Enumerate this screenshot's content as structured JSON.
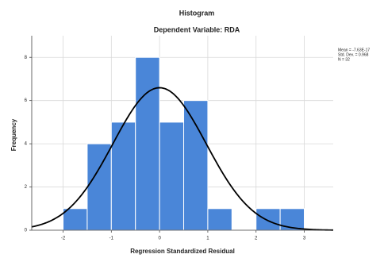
{
  "chart_data": {
    "type": "histogram",
    "title": "Histogram",
    "subtitle": "Dependent Variable: RDA",
    "x_label": "Regression Standardized Residual",
    "y_label": "Frequency",
    "bins": [
      -2,
      -1.5,
      -1,
      -0.5,
      0,
      0.5,
      1,
      1.5,
      2,
      2.5,
      3
    ],
    "values": [
      1,
      4,
      5,
      8,
      5,
      6,
      1,
      0,
      1,
      1
    ],
    "color": "#4a86d8",
    "curve_color": "#000000",
    "xlim": [
      -2.65,
      3.6
    ],
    "ylim": [
      0,
      9
    ],
    "xticks": [
      -2,
      -1,
      0,
      1,
      2,
      3
    ],
    "yticks": [
      0,
      2,
      4,
      6,
      8
    ],
    "grid": true,
    "stats": [
      {
        "label": "Mean = -7.63E-17",
        "value": -7.63e-17
      },
      {
        "label": "Std. Dev. = 0.968",
        "value": 0.968
      },
      {
        "label": "N = 32",
        "value": 32
      }
    ]
  }
}
